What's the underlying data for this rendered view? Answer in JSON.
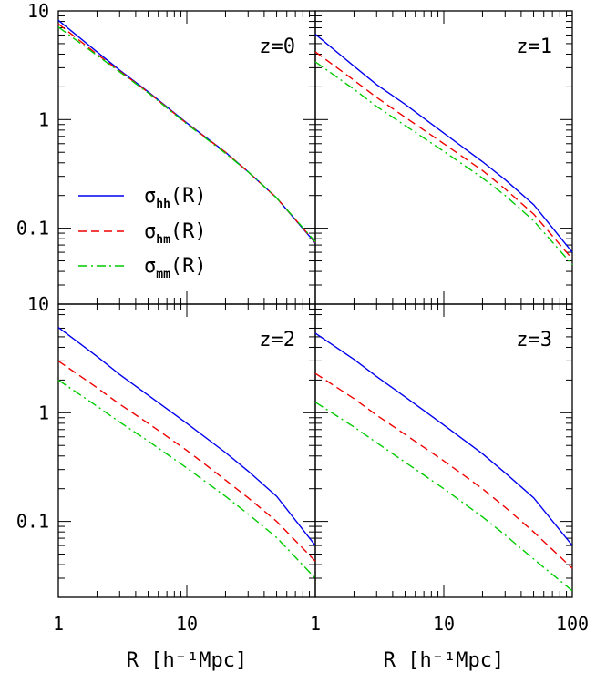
{
  "chart_data": {
    "type": "line",
    "x_scale": "log",
    "y_scale": "log",
    "xlim": [
      1,
      100
    ],
    "ylim": [
      0.02,
      10
    ],
    "x_tick_labels": [
      "1",
      "10",
      "100"
    ],
    "y_tick_labels": [
      "0.1",
      "1",
      "10"
    ],
    "xlabel": "R [h⁻¹Mpc]",
    "legend": {
      "placement": "left",
      "entries": [
        {
          "symbol": "σ",
          "sub": "hh",
          "suffix": "(R)"
        },
        {
          "symbol": "σ",
          "sub": "hm",
          "suffix": "(R)"
        },
        {
          "symbol": "σ",
          "sub": "mm",
          "suffix": "(R)"
        }
      ]
    },
    "series_styles": [
      {
        "key": "hh",
        "color": "#0000ee",
        "dash": "solid"
      },
      {
        "key": "hm",
        "color": "#ee0000",
        "dash": "dashed"
      },
      {
        "key": "mm",
        "color": "#00cc00",
        "dash": "dash-dot"
      }
    ],
    "x": [
      1,
      2,
      3,
      5,
      10,
      20,
      30,
      50,
      100
    ],
    "panels": [
      {
        "label": "z=0",
        "series": [
          {
            "key": "hh",
            "values": [
              8.2,
              4.2,
              2.85,
              1.8,
              0.93,
              0.5,
              0.33,
              0.19,
              0.073
            ]
          },
          {
            "key": "hm",
            "values": [
              7.6,
              4.0,
              2.8,
              1.78,
              0.92,
              0.5,
              0.33,
              0.19,
              0.074
            ]
          },
          {
            "key": "mm",
            "values": [
              7.1,
              3.9,
              2.75,
              1.76,
              0.91,
              0.49,
              0.33,
              0.19,
              0.075
            ]
          }
        ]
      },
      {
        "label": "z=1",
        "series": [
          {
            "key": "hh",
            "values": [
              6.1,
              3.1,
              2.1,
              1.38,
              0.75,
              0.41,
              0.28,
              0.165,
              0.06
            ]
          },
          {
            "key": "hm",
            "values": [
              4.2,
              2.3,
              1.6,
              1.05,
              0.6,
              0.34,
              0.23,
              0.135,
              0.052
            ]
          },
          {
            "key": "mm",
            "values": [
              3.4,
              1.9,
              1.32,
              0.88,
              0.51,
              0.29,
              0.2,
              0.117,
              0.046
            ]
          }
        ]
      },
      {
        "label": "z=2",
        "series": [
          {
            "key": "hh",
            "values": [
              6.1,
              3.3,
              2.25,
              1.45,
              0.8,
              0.43,
              0.29,
              0.17,
              0.06
            ]
          },
          {
            "key": "hm",
            "values": [
              3.0,
              1.7,
              1.2,
              0.8,
              0.45,
              0.24,
              0.165,
              0.1,
              0.043
            ]
          },
          {
            "key": "mm",
            "values": [
              2.0,
              1.15,
              0.82,
              0.55,
              0.31,
              0.17,
              0.117,
              0.071,
              0.03
            ]
          }
        ]
      },
      {
        "label": "z=3",
        "series": [
          {
            "key": "hh",
            "values": [
              5.4,
              3.1,
              2.15,
              1.4,
              0.77,
              0.42,
              0.28,
              0.165,
              0.06
            ]
          },
          {
            "key": "hm",
            "values": [
              2.3,
              1.35,
              0.95,
              0.63,
              0.36,
              0.2,
              0.135,
              0.08,
              0.037
            ]
          },
          {
            "key": "mm",
            "values": [
              1.25,
              0.74,
              0.53,
              0.35,
              0.2,
              0.11,
              0.075,
              0.045,
              0.023
            ]
          }
        ]
      }
    ]
  }
}
